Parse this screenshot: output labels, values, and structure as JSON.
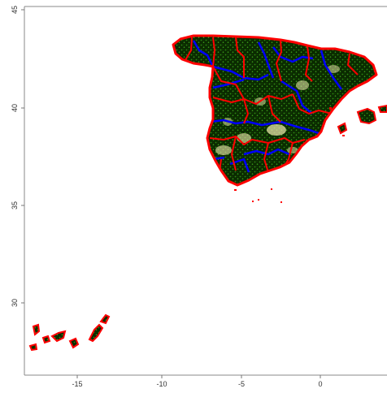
{
  "map": {
    "x_axis": {
      "ticks": [
        -15,
        -10,
        -5,
        0
      ],
      "tick_labels": [
        "-15",
        "-10",
        "-5",
        "0"
      ]
    },
    "y_axis": {
      "ticks": [
        30,
        35,
        40,
        45
      ],
      "tick_labels": [
        "30",
        "35",
        "40",
        "45"
      ]
    },
    "xlim": [
      -18.5,
      4.3
    ],
    "ylim": [
      27.3,
      45.0
    ],
    "regions": [
      "Iberian Peninsula (Spain)",
      "Balearic Islands",
      "Canary Islands"
    ],
    "styles": {
      "province_border_color": "#ff0000",
      "regional_border_color": "#0000ff",
      "fill_color": "#0a2a00",
      "texture_dot_color": "#2f8a12",
      "highlight_color": "#f3f0b0",
      "frame_color": "#888888"
    }
  }
}
